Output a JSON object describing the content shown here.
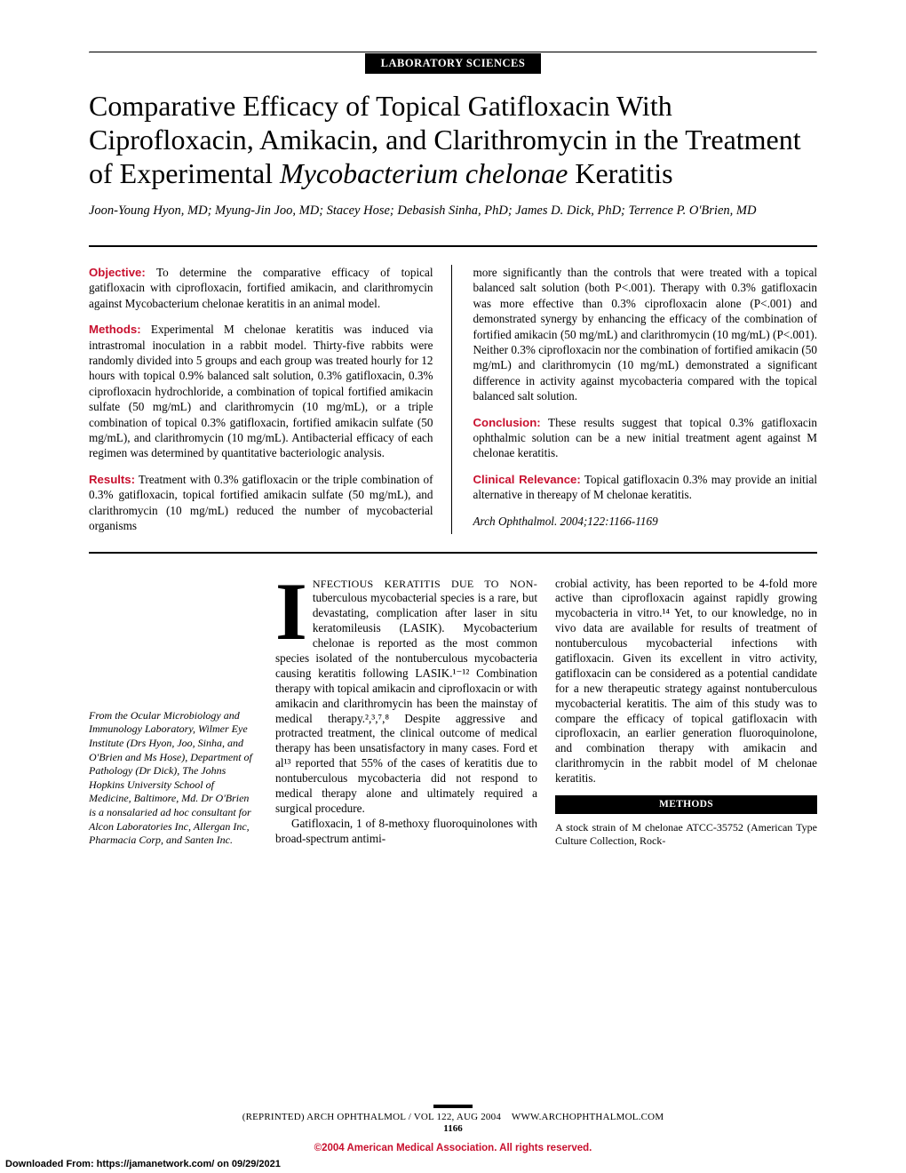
{
  "tag": "LABORATORY SCIENCES",
  "title_pre": "Comparative Efficacy of Topical Gatifloxacin With Ciprofloxacin, Amikacin, and Clarithromycin in the Treatment of Experimental ",
  "title_italic": "Mycobacterium chelonae",
  "title_post": " Keratitis",
  "authors": "Joon-Young Hyon, MD; Myung-Jin Joo, MD; Stacey Hose; Debasish Sinha, PhD; James D. Dick, PhD; Terrence P. O'Brien, MD",
  "abstract": {
    "objective": "To determine the comparative efficacy of topical gatifloxacin with ciprofloxacin, fortified amikacin, and clarithromycin against Mycobacterium chelonae keratitis in an animal model.",
    "methods": "Experimental M chelonae keratitis was induced via intrastromal inoculation in a rabbit model. Thirty-five rabbits were randomly divided into 5 groups and each group was treated hourly for 12 hours with topical 0.9% balanced salt solution, 0.3% gatifloxacin, 0.3% ciprofloxacin hydrochloride, a combination of topical fortified amikacin sulfate (50 mg/mL) and clarithromycin (10 mg/mL), or a triple combination of topical 0.3% gatifloxacin, fortified amikacin sulfate (50 mg/mL), and clarithromycin (10 mg/mL). Antibacterial efficacy of each regimen was determined by quantitative bacteriologic analysis.",
    "results_left": "Treatment with 0.3% gatifloxacin or the triple combination of 0.3% gatifloxacin, topical fortified amikacin sulfate (50 mg/mL), and clarithromycin (10 mg/mL) reduced the number of mycobacterial organisms",
    "results_right": "more significantly than the controls that were treated with a topical balanced salt solution (both P<.001). Therapy with 0.3% gatifloxacin was more effective than 0.3% ciprofloxacin alone (P<.001) and demonstrated synergy by enhancing the efficacy of the combination of fortified amikacin (50 mg/mL) and clarithromycin (10 mg/mL) (P<.001). Neither 0.3% ciprofloxacin nor the combination of fortified amikacin (50 mg/mL) and clarithromycin (10 mg/mL) demonstrated a significant difference in activity against mycobacteria compared with the topical balanced salt solution.",
    "conclusion": "These results suggest that topical 0.3% gatifloxacin ophthalmic solution can be a new initial treatment agent against M chelonae keratitis.",
    "clinical": "Topical gatifloxacin 0.3% may provide an initial alternative in thereapy of M chelonae keratitis.",
    "citation": "Arch Ophthalmol. 2004;122:1166-1169"
  },
  "affiliation": "From the Ocular Microbiology and Immunology Laboratory, Wilmer Eye Institute (Drs Hyon, Joo, Sinha, and O'Brien and Ms Hose), Department of Pathology (Dr Dick), The Johns Hopkins University School of Medicine, Baltimore, Md. Dr O'Brien is a nonsalaried ad hoc consultant for Alcon Laboratories Inc, Allergan Inc, Pharmacia Corp, and Santen Inc.",
  "body": {
    "dropcap": "I",
    "smallcaps": "NFECTIOUS KERATITIS DUE TO NON-",
    "col1_rest": "tuberculous mycobacterial species is a rare, but devastating, complication after laser in situ keratomileusis (LASIK). Mycobacterium chelonae is reported as the most common species isolated of the nontuberculous mycobacteria causing keratitis following LASIK.¹⁻¹² Combination therapy with topical amikacin and ciprofloxacin or with amikacin and clarithromycin has been the mainstay of medical therapy.²,³,⁷,⁸ Despite aggressive and protracted treatment, the clinical outcome of medical therapy has been unsatisfactory in many cases. Ford et al¹³ reported that 55% of the cases of keratitis due to nontuberculous mycobacteria did not respond to medical therapy alone and ultimately required a surgical procedure.",
    "col1_para2": "Gatifloxacin, 1 of 8-methoxy fluoroquinolones with broad-spectrum antimi-",
    "col2": "crobial activity, has been reported to be 4-fold more active than ciprofloxacin against rapidly growing mycobacteria in vitro.¹⁴ Yet, to our knowledge, no in vivo data are available for results of treatment of nontuberculous mycobacterial infections with gatifloxacin. Given its excellent in vitro activity, gatifloxacin can be considered as a potential candidate for a new therapeutic strategy against nontuberculous mycobacterial keratitis. The aim of this study was to compare the efficacy of topical gatifloxacin with ciprofloxacin, an earlier generation fluoroquinolone, and combination therapy with amikacin and clarithromycin in the rabbit model of M chelonae keratitis.",
    "methods_head": "METHODS",
    "methods_text": "A stock strain of M chelonae ATCC-35752 (American Type Culture Collection, Rock-"
  },
  "footer": {
    "reprint": "(REPRINTED) ARCH OPHTHALMOL / VOL 122, AUG 2004",
    "site": "WWW.ARCHOPHTHALMOL.COM",
    "page": "1166"
  },
  "copyright": "©2004 American Medical Association. All rights reserved.",
  "download": "Downloaded From: https://jamanetwork.com/ on 09/29/2021",
  "heads": {
    "objective": "Objective:",
    "methods": "Methods:",
    "results": "Results:",
    "conclusion": "Conclusion:",
    "clinical": "Clinical Relevance:"
  }
}
